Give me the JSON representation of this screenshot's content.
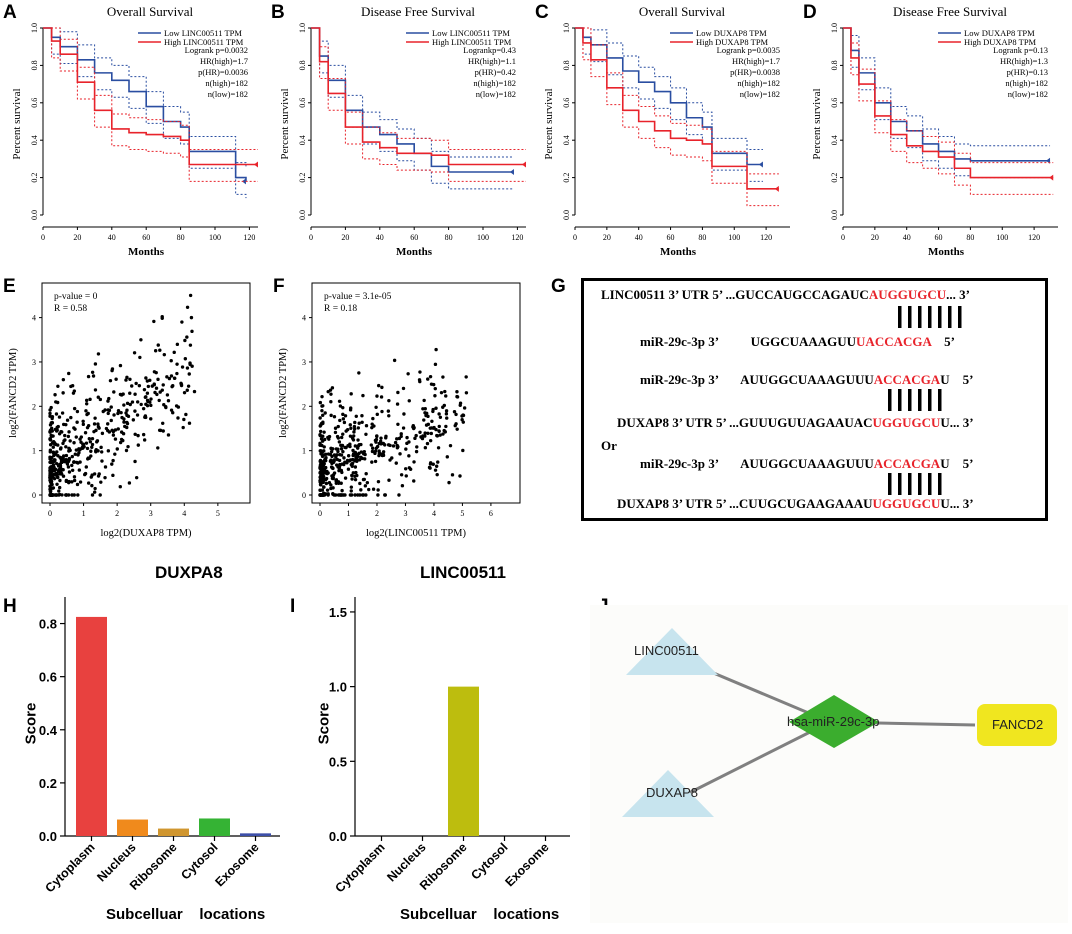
{
  "panels": {
    "A": {
      "letter": "A",
      "title": "Overall Survival",
      "legend": [
        "Low LINC00511 TPM",
        "High LINC00511 TPM"
      ],
      "stats": [
        "Logrank p=0.0032",
        "HR(high)=1.7",
        "p(HR)=0.0036",
        "n(high)=182",
        "n(low)=182"
      ]
    },
    "B": {
      "letter": "B",
      "title": "Disease Free Survival",
      "legend": [
        "Low LINC00511 TPM",
        "High LINC00511 TPM"
      ],
      "stats": [
        "Logrankp=0.43",
        "HR(high)=1.1",
        "p(HR)=0.42",
        "n(high)=182",
        "n(low)=182"
      ]
    },
    "C": {
      "letter": "C",
      "title": "Overall Survival",
      "legend": [
        "Low DUXAP8 TPM",
        "High DUXAP8 TPM"
      ],
      "stats": [
        "Logrank p=0.0035",
        "HR(high)=1.7",
        "p(HR)=0.0038",
        "n(high)=182",
        "n(low)=182"
      ]
    },
    "D": {
      "letter": "D",
      "title": "Disease Free Survival",
      "legend": [
        "Low DUXAP8 TPM",
        "High DUXAP8 TPM"
      ],
      "stats": [
        "Logrank p=0.13",
        "HR(high)=1.3",
        "p(HR)=0.13",
        "n(high)=182",
        "n(low)=182"
      ]
    },
    "E": {
      "letter": "E",
      "annot": [
        "p-value = 0",
        "R = 0.58"
      ],
      "xlabel": "log2(DUXAP8 TPM)",
      "ylabel": "log2(FANCD2 TPM)"
    },
    "F": {
      "letter": "F",
      "annot": [
        "p-value = 3.1e-05",
        "R = 0.18"
      ],
      "xlabel": "log2(LINC00511 TPM)",
      "ylabel": "log2(FANCD2 TPM)"
    },
    "G": {
      "letter": "G"
    },
    "H": {
      "letter": "H",
      "title": "DUXPA8"
    },
    "I": {
      "letter": "I",
      "title": "LINC00511"
    },
    "J": {
      "letter": "J"
    }
  },
  "km_common": {
    "ylabel": "Percent survival",
    "xlabel": "Months",
    "yticks": [
      "0.0",
      "0.2",
      "0.4",
      "0.6",
      "0.8",
      "1.0"
    ]
  },
  "km_xticks": {
    "A": [
      "0",
      "20",
      "40",
      "60",
      "80",
      "100",
      "120"
    ],
    "B": [
      "0",
      "20",
      "40",
      "60",
      "80",
      "100",
      "120"
    ],
    "C": [
      "0",
      "20",
      "40",
      "60",
      "80",
      "100",
      "120"
    ],
    "D": [
      "0",
      "20",
      "40",
      "60",
      "80",
      "100",
      "120"
    ]
  },
  "colors": {
    "low": "#2a4ea1",
    "high": "#e8232b",
    "bar_cyto": "#e8413f",
    "bar_nuc": "#f08a1c",
    "bar_ribo": "#d0962f",
    "bar_cytosol": "#35b334",
    "bar_exo": "#3d4fa8",
    "bar_ribo_I": "#bdbd0e"
  },
  "sequence": {
    "line1": {
      "pre": "LINC00511 3’ UTR 5’ ...GUCCAUGCCAGAUC",
      "red": "AUGGUGCU",
      "post": "... 3’"
    },
    "line2": {
      "pre": "miR-29c-3p 3’          UGGCUAAAGUU",
      "red": "UACCACGA",
      "post": "    5’"
    },
    "line3": {
      "pre": "miR-29c-3p 3’       AUUGGCUAAAGUUU",
      "red": "ACCACGA",
      "post": "U    5’"
    },
    "line4": {
      "pre": "DUXAP8 3’ UTR 5’ ...GUUUGUUAGAAUAC",
      "red": "UGGUGCU",
      "post": "U... 3’"
    },
    "or": "Or",
    "line5": {
      "pre": "miR-29c-3p 3’       AUUGGCUAAAGUUU",
      "red": "ACCACGA",
      "post": "U    5’"
    },
    "line6": {
      "pre": "DUXAP8 3’ UTR 5’ ...CUUGCUGAAGAAAU",
      "red": "UGGUGCU",
      "post": "U... 3’"
    }
  },
  "bars": {
    "xlabel": "Subcelluar    locations",
    "ylabel": "Score",
    "H": {
      "categories": [
        "Cytoplasm",
        "Nucleus",
        "Ribosome",
        "Cytosol",
        "Exosome"
      ],
      "values": [
        0.825,
        0.062,
        0.028,
        0.066,
        0.01
      ],
      "yticks": [
        "0.0",
        "0.2",
        "0.4",
        "0.6",
        "0.8"
      ],
      "ymax": 0.9
    },
    "I": {
      "categories": [
        "Cytoplasm",
        "Nucleus",
        "Ribosome",
        "Cytosol",
        "Exosome"
      ],
      "values": [
        0,
        0,
        1.0,
        0,
        0
      ],
      "yticks": [
        "0.0",
        "0.5",
        "1.0",
        "1.5"
      ],
      "ymax": 1.6
    }
  },
  "network": {
    "nodes": [
      "LINC00511",
      "DUXAP8",
      "hsa-miR-29c-3p",
      "FANCD2"
    ]
  },
  "scatter": {
    "E_xticks": [
      "0",
      "1",
      "2",
      "3",
      "4",
      "5"
    ],
    "E_yticks": [
      "0",
      "1",
      "2",
      "3",
      "4"
    ],
    "F_xticks": [
      "0",
      "1",
      "2",
      "3",
      "4",
      "5",
      "6"
    ],
    "F_yticks": [
      "0",
      "1",
      "2",
      "3",
      "4"
    ]
  }
}
